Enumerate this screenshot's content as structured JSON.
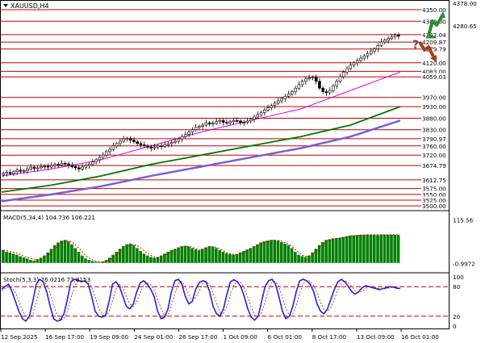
{
  "colors": {
    "level_line": "#c00000",
    "candle": "#000000",
    "ma_fast": "#e000e0",
    "ma_mid": "#007a00",
    "ma_slow": "#7b5ed6",
    "macd_hist": "#008000",
    "macd_signal": "#d00000",
    "stoch_main": "#2222dd",
    "stoch_signal": "#d00000",
    "stoch_levels": "#c00000",
    "up_arrow": "#2e8b2e",
    "down_arrow": "#a0401f",
    "question": "#a0401f"
  },
  "header": {
    "symbol_label": "XAUUSD,H4",
    "dropdown_icon": "triangle-down-icon"
  },
  "signal_icons": {
    "up": "green-up-arrow-icon",
    "down": "brown-down-arrow-icon",
    "question_text": "?"
  },
  "chart_data": [
    {
      "type": "candlestick",
      "title": "XAUUSD,H4",
      "ylim": [
        3490,
        4378
      ],
      "y_ticks": [
        "4378.00",
        "4280.65"
      ],
      "levels": [
        {
          "value": 4350,
          "label": "4350.00"
        },
        {
          "value": 4300,
          "label": "4300.00"
        },
        {
          "value": 4242.04,
          "label": "4242.04"
        },
        {
          "value": 4209.87,
          "label": "4209.87"
        },
        {
          "value": 4179.79,
          "label": "4179.79"
        },
        {
          "value": 4120,
          "label": "4120.00"
        },
        {
          "value": 4083,
          "label": "4083.00"
        },
        {
          "value": 4059.03,
          "label": "4059.03"
        },
        {
          "value": 3970,
          "label": "3970.00"
        },
        {
          "value": 3930,
          "label": "3930.00"
        },
        {
          "value": 3880,
          "label": "3880.00"
        },
        {
          "value": 3830,
          "label": "3830.00"
        },
        {
          "value": 3790.97,
          "label": "3790.97"
        },
        {
          "value": 3760,
          "label": "3760.00"
        },
        {
          "value": 3720,
          "label": "3720.00"
        },
        {
          "value": 3674.79,
          "label": "3674.79"
        },
        {
          "value": 3612.75,
          "label": "3612.75"
        },
        {
          "value": 3575,
          "label": "3575.00"
        },
        {
          "value": 3550,
          "label": "3550.00"
        },
        {
          "value": 3525,
          "label": "3525.00"
        },
        {
          "value": 3500,
          "label": "3500.00"
        }
      ],
      "closes": [
        3641,
        3645,
        3640,
        3648,
        3655,
        3650,
        3652,
        3660,
        3668,
        3662,
        3665,
        3670,
        3672,
        3668,
        3675,
        3680,
        3678,
        3685,
        3682,
        3676,
        3670,
        3665,
        3660,
        3668,
        3675,
        3680,
        3690,
        3700,
        3710,
        3720,
        3735,
        3745,
        3760,
        3770,
        3780,
        3790,
        3792,
        3785,
        3778,
        3770,
        3765,
        3760,
        3755,
        3750,
        3755,
        3760,
        3758,
        3765,
        3770,
        3775,
        3780,
        3790,
        3800,
        3810,
        3820,
        3830,
        3840,
        3845,
        3850,
        3860,
        3855,
        3858,
        3865,
        3870,
        3862,
        3860,
        3865,
        3870,
        3868,
        3860,
        3862,
        3868,
        3875,
        3885,
        3895,
        3905,
        3915,
        3925,
        3935,
        3945,
        3955,
        3965,
        3975,
        3985,
        3995,
        4010,
        4025,
        4040,
        4050,
        4055,
        4058,
        4040,
        4010,
        3995,
        3990,
        4000,
        4020,
        4040,
        4060,
        4080,
        4095,
        4110,
        4120,
        4130,
        4140,
        4150,
        4160,
        4170,
        4180,
        4195,
        4210,
        4218,
        4225,
        4232,
        4240,
        4235
      ],
      "ma_fast_y": [
        3630,
        3660,
        3700,
        3760,
        3820,
        3870,
        3920,
        4000,
        4080
      ],
      "ma_mid_y": [
        3560,
        3590,
        3630,
        3680,
        3720,
        3760,
        3800,
        3850,
        3930
      ],
      "ma_slow_y": [
        3520,
        3550,
        3585,
        3630,
        3670,
        3710,
        3750,
        3800,
        3870
      ]
    },
    {
      "type": "bar",
      "title": "MACD(5,34,4) 104.736 106.221",
      "ylim": [
        -20,
        130
      ],
      "y_ticks": [
        "115.56",
        "-0.9972"
      ],
      "values": [
        35,
        30,
        28,
        25,
        22,
        18,
        15,
        12,
        8,
        6,
        10,
        14,
        20,
        28,
        38,
        48,
        55,
        60,
        62,
        58,
        50,
        40,
        30,
        20,
        12,
        8,
        5,
        3,
        2,
        4,
        8,
        14,
        22,
        30,
        38,
        45,
        50,
        52,
        48,
        40,
        32,
        25,
        20,
        16,
        14,
        16,
        20,
        25,
        30,
        35,
        38,
        42,
        45,
        46,
        44,
        40,
        36,
        34,
        38,
        42,
        45,
        44,
        40,
        35,
        30,
        26,
        24,
        22,
        24,
        28,
        32,
        36,
        40,
        45,
        50,
        55,
        58,
        60,
        62,
        62,
        60,
        56,
        52,
        48,
        40,
        30,
        22,
        18,
        16,
        20,
        28,
        38,
        48,
        56,
        62,
        64,
        66,
        67,
        68,
        70,
        72,
        74,
        74,
        75,
        76,
        76,
        76,
        76,
        76,
        75,
        76,
        76,
        76,
        76,
        76,
        75
      ],
      "signal": [
        34,
        33,
        31,
        29,
        26,
        22,
        18,
        15,
        12,
        9,
        8,
        10,
        14,
        20,
        28,
        38,
        46,
        54,
        58,
        60,
        56,
        48,
        40,
        30,
        20,
        13,
        8,
        5,
        3,
        3,
        5,
        9,
        15,
        22,
        30,
        38,
        44,
        48,
        50,
        46,
        40,
        32,
        26,
        20,
        16,
        15,
        16,
        20,
        25,
        30,
        34,
        38,
        42,
        44,
        45,
        42,
        38,
        35,
        35,
        38,
        42,
        44,
        42,
        38,
        33,
        28,
        25,
        23,
        22,
        25,
        29,
        33,
        37,
        42,
        47,
        52,
        56,
        58,
        60,
        61,
        61,
        58,
        54,
        50,
        45,
        36,
        28,
        21,
        18,
        18,
        23,
        31,
        40,
        49,
        56,
        61,
        64,
        66,
        67,
        68,
        70,
        72,
        73,
        74,
        75,
        75,
        76,
        76,
        76,
        76,
        76,
        76,
        76,
        76,
        76,
        76
      ]
    },
    {
      "type": "line",
      "title": "Stoch(5,3,3) 76.0216 77.8153",
      "ylim": [
        0,
        100
      ],
      "y_ticks": [
        "100",
        "80",
        "20",
        "0"
      ],
      "levels": [
        80,
        20
      ],
      "main": [
        75,
        80,
        85,
        70,
        50,
        30,
        15,
        10,
        20,
        50,
        85,
        95,
        90,
        70,
        40,
        15,
        10,
        12,
        25,
        55,
        90,
        95,
        93,
        90,
        92,
        85,
        60,
        30,
        20,
        18,
        22,
        50,
        85,
        90,
        80,
        60,
        40,
        35,
        45,
        70,
        88,
        92,
        85,
        75,
        60,
        30,
        15,
        18,
        35,
        70,
        92,
        95,
        85,
        60,
        45,
        50,
        75,
        88,
        92,
        90,
        70,
        40,
        25,
        20,
        35,
        65,
        90,
        94,
        90,
        80,
        60,
        35,
        18,
        12,
        20,
        50,
        80,
        92,
        95,
        85,
        60,
        30,
        15,
        20,
        40,
        70,
        92,
        95,
        92,
        85,
        70,
        45,
        30,
        25,
        35,
        55,
        75,
        90,
        95,
        90,
        80,
        70,
        65,
        70,
        78,
        82,
        80,
        78,
        76,
        74,
        76,
        78,
        80,
        79,
        77,
        76
      ],
      "signal": [
        72,
        76,
        80,
        78,
        68,
        50,
        32,
        18,
        14,
        24,
        50,
        76,
        90,
        85,
        67,
        42,
        22,
        12,
        15,
        30,
        57,
        80,
        93,
        92,
        91,
        89,
        79,
        58,
        37,
        23,
        20,
        30,
        52,
        75,
        85,
        77,
        60,
        45,
        40,
        50,
        68,
        83,
        88,
        84,
        73,
        55,
        35,
        21,
        23,
        41,
        67,
        86,
        91,
        80,
        63,
        52,
        58,
        71,
        85,
        90,
        84,
        67,
        45,
        28,
        26,
        40,
        63,
        83,
        91,
        88,
        77,
        58,
        38,
        22,
        17,
        27,
        50,
        74,
        89,
        91,
        80,
        58,
        35,
        22,
        25,
        43,
        67,
        86,
        93,
        91,
        82,
        67,
        48,
        33,
        30,
        38,
        55,
        73,
        87,
        92,
        88,
        80,
        72,
        68,
        71,
        76,
        80,
        80,
        78,
        76,
        75,
        76,
        78,
        79,
        78,
        77
      ]
    }
  ],
  "x_axis": {
    "labels": [
      "12 Sep 2025",
      "16 Sep 17:00",
      "19 Sep 09:00",
      "24 Sep 01:00",
      "26 Sep 17:00",
      "1 Oct 09:00",
      "6 Oct 01:00",
      "8 Oct 17:00",
      "13 Oct 09:00",
      "16 Oct 01:00"
    ]
  }
}
